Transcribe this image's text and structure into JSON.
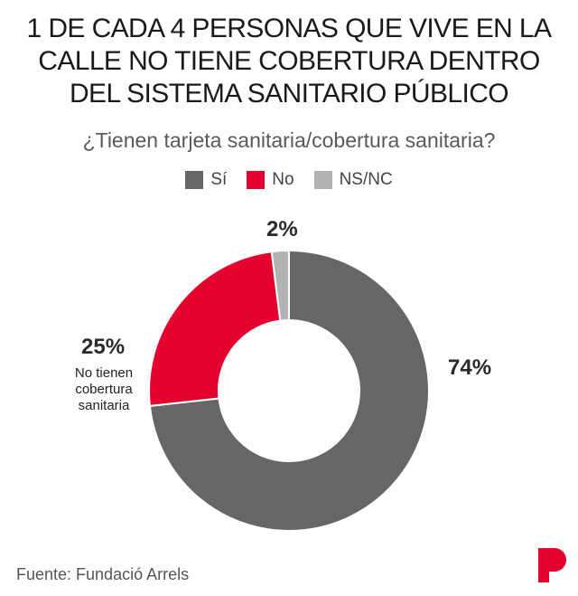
{
  "title_lines": [
    "1 DE CADA 4 PERSONAS QUE VIVE EN LA",
    "CALLE NO TIENE COBERTURA DENTRO",
    "DEL SISTEMA SANITARIO PÚBLICO"
  ],
  "subtitle": "¿Tienen tarjeta sanitaria/cobertura sanitaria?",
  "source": "Fuente: Fundació Arrels",
  "logo_icon": "publisher-p-logo",
  "chart_data": {
    "type": "pie",
    "donut": true,
    "legend_position": "top",
    "categories": [
      "Sí",
      "No",
      "NS/NC"
    ],
    "values": [
      74,
      25,
      2
    ],
    "colors": [
      "#666666",
      "#e4032e",
      "#b2b2b2"
    ],
    "data_labels": [
      "74%",
      "25%",
      "2%"
    ],
    "annotations": {
      "no_note": "No tienen cobertura sanitaria"
    }
  }
}
